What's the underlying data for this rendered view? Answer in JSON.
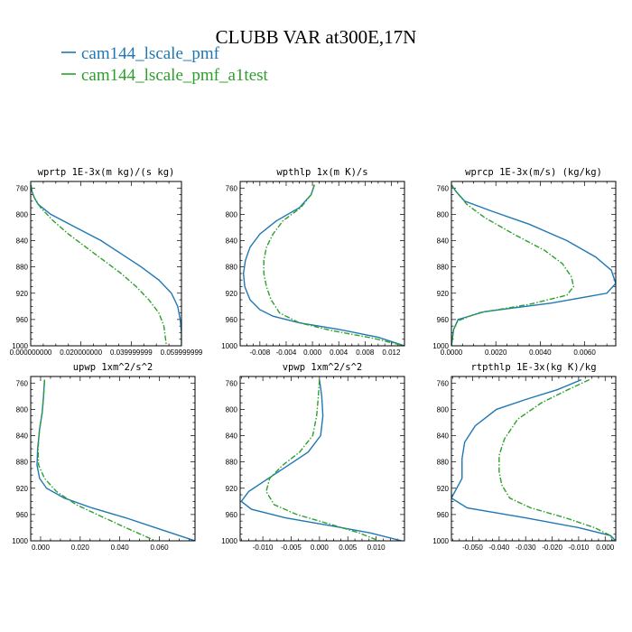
{
  "figure": {
    "title": "CLUBB VAR at300E,17N",
    "legend": [
      {
        "label": "cam144_lscale_pmf",
        "color": "#1f77b4",
        "dash": "solid"
      },
      {
        "label": "cam144_lscale_pmf_a1test",
        "color": "#2ca02c",
        "dash": "dashdot"
      }
    ]
  },
  "chart_data": [
    {
      "type": "line",
      "title": "wprtp  1E-3x(m kg)/(s kg)",
      "xlim": [
        0.0,
        0.06
      ],
      "ylim": [
        1000,
        750
      ],
      "y_inverted": true,
      "xticks": [
        0.0,
        0.02,
        0.04,
        0.06
      ],
      "xtick_labels": [
        "0.000000000",
        "0.020000000",
        "0.039999999",
        "0.059999999"
      ],
      "yticks": [
        760,
        800,
        840,
        880,
        920,
        960,
        1000
      ],
      "series": [
        {
          "legend_index": 0,
          "x": [
            0.0001,
            0.0005,
            0.0015,
            0.003,
            0.008,
            0.018,
            0.028,
            0.036,
            0.044,
            0.051,
            0.056,
            0.0585,
            0.0595,
            0.06,
            0.06
          ],
          "y": [
            755,
            765,
            775,
            785,
            800,
            820,
            840,
            860,
            880,
            900,
            920,
            940,
            960,
            980,
            1000
          ]
        },
        {
          "legend_index": 1,
          "x": [
            0.0001,
            0.0005,
            0.0015,
            0.004,
            0.009,
            0.015,
            0.022,
            0.029,
            0.036,
            0.042,
            0.047,
            0.051,
            0.053,
            0.0535,
            0.054
          ],
          "y": [
            755,
            765,
            775,
            790,
            810,
            830,
            850,
            870,
            890,
            910,
            930,
            950,
            970,
            985,
            1000
          ]
        }
      ]
    },
    {
      "type": "line",
      "title": "wpthlp  1x(m K)/s",
      "xlim": [
        -0.011,
        0.014
      ],
      "ylim": [
        1000,
        750
      ],
      "y_inverted": true,
      "xticks": [
        -0.008,
        -0.004,
        0.0,
        0.004,
        0.008,
        0.012
      ],
      "xtick_labels": [
        "-0.008",
        "-0.004",
        "0.000",
        "0.004",
        "0.008",
        "0.012"
      ],
      "yticks": [
        760,
        800,
        840,
        880,
        920,
        960,
        1000
      ],
      "series": [
        {
          "legend_index": 0,
          "x": [
            0.0003,
            -0.0002,
            -0.002,
            -0.0055,
            -0.008,
            -0.0095,
            -0.0102,
            -0.0105,
            -0.0103,
            -0.0095,
            -0.008,
            -0.006,
            -0.002,
            0.004,
            0.01,
            0.014
          ],
          "y": [
            755,
            770,
            790,
            810,
            830,
            850,
            870,
            890,
            910,
            930,
            945,
            955,
            965,
            975,
            987,
            1000
          ]
        },
        {
          "legend_index": 1,
          "x": [
            0.0003,
            -0.0002,
            -0.0018,
            -0.0045,
            -0.006,
            -0.007,
            -0.0074,
            -0.0074,
            -0.007,
            -0.0063,
            -0.005,
            -0.002,
            0.003,
            0.009,
            0.014
          ],
          "y": [
            755,
            770,
            790,
            810,
            830,
            850,
            870,
            890,
            910,
            930,
            950,
            965,
            977,
            988,
            1000
          ]
        }
      ]
    },
    {
      "type": "line",
      "title": "wprcp  1E-3x(m/s) (kg/kg)",
      "xlim": [
        0.0,
        0.0074
      ],
      "ylim": [
        1000,
        750
      ],
      "y_inverted": true,
      "xticks": [
        0.0,
        0.002,
        0.004,
        0.006
      ],
      "xtick_labels": [
        "0.0000",
        "0.0020",
        "0.0040",
        "0.0060"
      ],
      "yticks": [
        760,
        800,
        840,
        880,
        920,
        960,
        1000
      ],
      "series": [
        {
          "legend_index": 0,
          "x": [
            0.0,
            0.0002,
            0.0006,
            0.0018,
            0.0035,
            0.0052,
            0.0065,
            0.0072,
            0.0074,
            0.007,
            0.0045,
            0.0015,
            0.0003,
            0.0001,
            0.0
          ],
          "y": [
            755,
            765,
            780,
            795,
            815,
            840,
            865,
            885,
            905,
            920,
            935,
            948,
            960,
            975,
            1000
          ]
        },
        {
          "legend_index": 1,
          "x": [
            0.0,
            0.0002,
            0.0007,
            0.0015,
            0.0028,
            0.0042,
            0.005,
            0.0054,
            0.0055,
            0.0052,
            0.0035,
            0.0012,
            0.0003,
            0.0001,
            0.0
          ],
          "y": [
            755,
            765,
            785,
            805,
            830,
            855,
            875,
            895,
            910,
            923,
            937,
            950,
            962,
            975,
            1000
          ]
        }
      ]
    },
    {
      "type": "line",
      "title": "upwp  1xm^2/s^2",
      "xlim": [
        -0.005,
        0.078
      ],
      "ylim": [
        1000,
        750
      ],
      "y_inverted": true,
      "xticks": [
        0.0,
        0.02,
        0.04,
        0.06
      ],
      "xtick_labels": [
        "0.000",
        "0.020",
        "0.040",
        "0.060"
      ],
      "yticks": [
        760,
        800,
        840,
        880,
        920,
        960,
        1000
      ],
      "series": [
        {
          "legend_index": 0,
          "x": [
            0.002,
            0.0015,
            0.0008,
            -0.0005,
            -0.0015,
            -0.0018,
            -0.0005,
            0.003,
            0.012,
            0.026,
            0.043,
            0.06,
            0.078
          ],
          "y": [
            755,
            780,
            805,
            830,
            860,
            885,
            905,
            920,
            935,
            950,
            965,
            982,
            1000
          ]
        },
        {
          "legend_index": 1,
          "x": [
            0.002,
            0.0015,
            0.0008,
            -0.0005,
            -0.0013,
            -0.001,
            0.002,
            0.008,
            0.018,
            0.03,
            0.043,
            0.058
          ],
          "y": [
            755,
            780,
            805,
            830,
            860,
            885,
            905,
            925,
            945,
            962,
            980,
            1000
          ]
        }
      ]
    },
    {
      "type": "line",
      "title": "vpwp  1xm^2/s^2",
      "xlim": [
        -0.014,
        0.015
      ],
      "ylim": [
        1000,
        750
      ],
      "y_inverted": true,
      "xticks": [
        -0.01,
        -0.005,
        0.0,
        0.005,
        0.01
      ],
      "xtick_labels": [
        "-0.010",
        "-0.005",
        "0.000",
        "0.005",
        "0.010"
      ],
      "yticks": [
        760,
        800,
        840,
        880,
        920,
        960,
        1000
      ],
      "series": [
        {
          "legend_index": 0,
          "x": [
            0.0,
            0.0004,
            0.0006,
            0.0002,
            -0.002,
            -0.0055,
            -0.009,
            -0.0125,
            -0.0138,
            -0.012,
            -0.006,
            0.002,
            0.009,
            0.0145
          ],
          "y": [
            755,
            780,
            810,
            840,
            865,
            885,
            905,
            925,
            940,
            952,
            965,
            977,
            988,
            1000
          ]
        },
        {
          "legend_index": 1,
          "x": [
            0.0,
            -0.0002,
            -0.0005,
            -0.0012,
            -0.0035,
            -0.0065,
            -0.0088,
            -0.0094,
            -0.008,
            -0.004,
            0.002,
            0.007,
            0.0105
          ],
          "y": [
            755,
            780,
            810,
            840,
            865,
            885,
            905,
            925,
            945,
            960,
            975,
            988,
            1000
          ]
        }
      ]
    },
    {
      "type": "line",
      "title": "rtpthlp  1E-3x(kg K)/kg",
      "xlim": [
        -0.058,
        0.004
      ],
      "ylim": [
        1000,
        750
      ],
      "y_inverted": true,
      "xticks": [
        -0.05,
        -0.04,
        -0.03,
        -0.02,
        -0.01,
        0.0
      ],
      "xtick_labels": [
        "-0.050",
        "-0.040",
        "-0.030",
        "-0.020",
        "-0.010",
        "0.000"
      ],
      "yticks": [
        760,
        800,
        840,
        880,
        920,
        960,
        1000
      ],
      "series": [
        {
          "legend_index": 0,
          "x": [
            -0.009,
            -0.018,
            -0.03,
            -0.041,
            -0.049,
            -0.053,
            -0.054,
            -0.054,
            -0.056,
            -0.058,
            -0.052,
            -0.03,
            -0.01,
            0.002,
            0.004
          ],
          "y": [
            755,
            770,
            785,
            800,
            825,
            850,
            875,
            905,
            920,
            935,
            950,
            965,
            980,
            992,
            1000
          ]
        },
        {
          "legend_index": 1,
          "x": [
            -0.006,
            -0.014,
            -0.024,
            -0.033,
            -0.038,
            -0.04,
            -0.04,
            -0.039,
            -0.036,
            -0.028,
            -0.015,
            -0.004,
            0.002,
            0.003
          ],
          "y": [
            755,
            770,
            790,
            815,
            845,
            870,
            895,
            915,
            935,
            950,
            965,
            980,
            992,
            1000
          ]
        }
      ]
    }
  ]
}
